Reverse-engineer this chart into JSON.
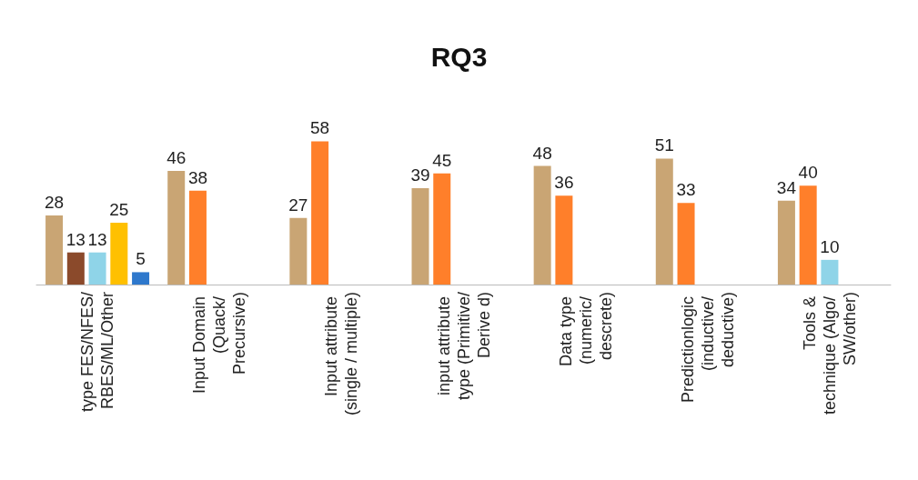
{
  "chart_data": {
    "type": "bar",
    "title": "RQ3",
    "categories": [
      "type FES/NFES/RBES/ML/Other",
      "Input Domain (Quack/ Precursive)",
      "Input attribute (single / multiple)",
      "input attribute type (Primitive/Derive d)",
      "Data type (numeric/ descrete)",
      "Predictionlogic (inductive/ deductive)",
      "Tools & technique (Algo/ SW/other)"
    ],
    "series": [
      {
        "color": "#c9a574",
        "values": [
          28,
          46,
          27,
          39,
          48,
          51,
          34
        ]
      },
      {
        "color": "#ff7f2a",
        "colors": [
          "#8b4a2b",
          "#ff7f2a",
          "#ff7f2a",
          "#ff7f2a",
          "#ff7f2a",
          "#ff7f2a",
          "#ff7f2a"
        ],
        "values": [
          13,
          38,
          58,
          45,
          36,
          33,
          40
        ]
      },
      {
        "color": "#8fd4e8",
        "values": [
          13,
          null,
          null,
          null,
          null,
          null,
          10
        ]
      },
      {
        "color": "#ffc000",
        "values": [
          25,
          null,
          null,
          null,
          null,
          null,
          null
        ]
      },
      {
        "color": "#2e78cc",
        "values": [
          5,
          null,
          null,
          null,
          null,
          null,
          null
        ]
      }
    ],
    "data_labels": true
  }
}
